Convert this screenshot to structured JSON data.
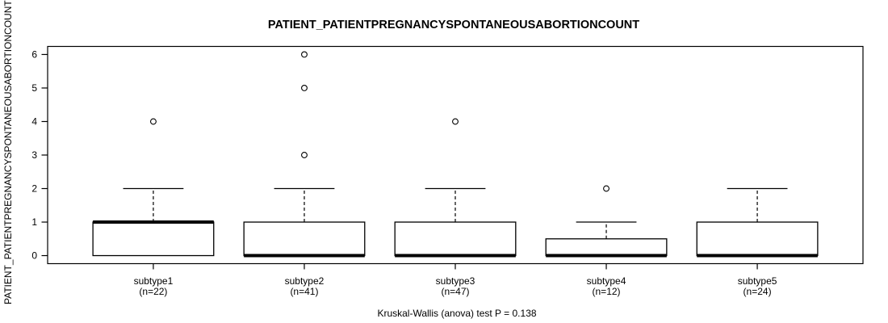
{
  "chart_data": {
    "type": "boxplot",
    "title": "PATIENT_PATIENTPREGNANCYSPONTANEOUSABORTIONCOUNT",
    "ylabel": "PATIENT_PATIENTPREGNANCYSPONTANEOUSABORTIONCOUNT",
    "xlabel": "",
    "footer": "Kruskal-Wallis (anova) test P = 0.138",
    "ylim": [
      0,
      6
    ],
    "yticks": [
      0,
      1,
      2,
      3,
      4,
      5,
      6
    ],
    "grid": false,
    "legend": false,
    "colors": {
      "foreground": "#000000",
      "background": "#ffffff"
    },
    "categories": [
      "subtype1",
      "subtype2",
      "subtype3",
      "subtype4",
      "subtype5"
    ],
    "groups": [
      {
        "label": "subtype1",
        "sublabel": "(n=22)",
        "n": 22,
        "whisker_low": 0,
        "q1": 0,
        "median": 1,
        "q3": 1,
        "whisker_high": 2,
        "outliers": [
          4
        ]
      },
      {
        "label": "subtype2",
        "sublabel": "(n=41)",
        "n": 41,
        "whisker_low": 0,
        "q1": 0,
        "median": 0,
        "q3": 1,
        "whisker_high": 2,
        "outliers": [
          6,
          5,
          3
        ]
      },
      {
        "label": "subtype3",
        "sublabel": "(n=47)",
        "n": 47,
        "whisker_low": 0,
        "q1": 0,
        "median": 0,
        "q3": 1,
        "whisker_high": 2,
        "outliers": [
          4
        ]
      },
      {
        "label": "subtype4",
        "sublabel": "(n=12)",
        "n": 12,
        "whisker_low": 0,
        "q1": 0,
        "median": 0,
        "q3": 0.5,
        "whisker_high": 1,
        "outliers": [
          2
        ]
      },
      {
        "label": "subtype5",
        "sublabel": "(n=24)",
        "n": 24,
        "whisker_low": 0,
        "q1": 0,
        "median": 0,
        "q3": 1,
        "whisker_high": 2,
        "outliers": []
      }
    ]
  }
}
